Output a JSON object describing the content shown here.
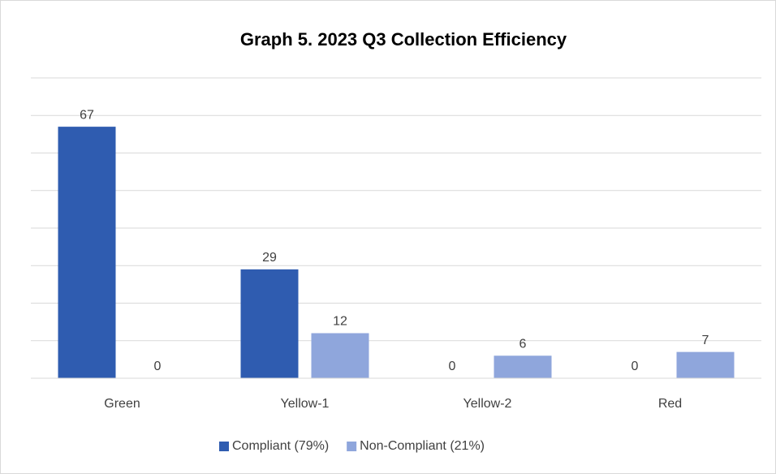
{
  "chart_data": {
    "type": "bar",
    "title": "Graph 5. 2023 Q3 Collection Efficiency",
    "categories": [
      "Green",
      "Yellow-1",
      "Yellow-2",
      "Red"
    ],
    "series": [
      {
        "name": "Compliant (79%)",
        "color": "#2f5cb0",
        "values": [
          67,
          29,
          0,
          0
        ]
      },
      {
        "name": "Non-Compliant (21%)",
        "color": "#8fa6dc",
        "values": [
          0,
          12,
          6,
          7
        ]
      }
    ],
    "ylim": [
      0,
      80
    ],
    "yticks": [
      0,
      10,
      20,
      30,
      40,
      50,
      60,
      70,
      80
    ],
    "grid": true,
    "legend": "bottom"
  }
}
